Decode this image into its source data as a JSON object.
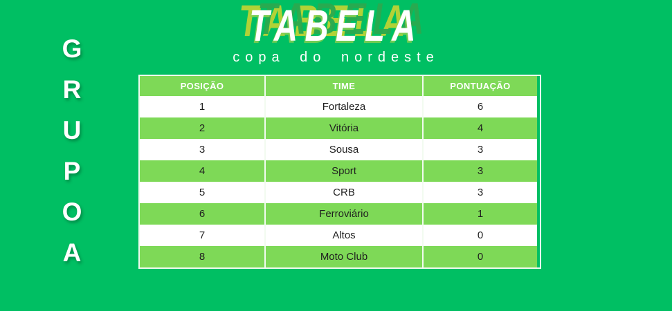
{
  "header": {
    "title": "TABELA",
    "subtitle": "copa do nordeste"
  },
  "group_label": {
    "text": "GRUPO A",
    "letters": [
      "G",
      "R",
      "U",
      "P",
      "O",
      "A"
    ]
  },
  "table": {
    "columns": [
      "POSIÇÃO",
      "TIME",
      "PONTUAÇÃO"
    ],
    "rows": [
      {
        "position": "1",
        "team": "Fortaleza",
        "points": "6"
      },
      {
        "position": "2",
        "team": "Vitória",
        "points": "4"
      },
      {
        "position": "3",
        "team": "Sousa",
        "points": "3"
      },
      {
        "position": "4",
        "team": "Sport",
        "points": "3"
      },
      {
        "position": "5",
        "team": "CRB",
        "points": "3"
      },
      {
        "position": "6",
        "team": "Ferroviário",
        "points": "1"
      },
      {
        "position": "7",
        "team": "Altos",
        "points": "0"
      },
      {
        "position": "8",
        "team": "Moto Club",
        "points": "0"
      }
    ]
  },
  "colors": {
    "background": "#00BF63",
    "row_highlight": "#7ED957",
    "row_default": "#FFFFFF",
    "header_text": "#FFFFFF",
    "cell_text": "#1F1F1F",
    "title_text": "#FFFFFF",
    "title_shadow_lime": "#BCD434",
    "title_shadow_green": "#2BA94F"
  }
}
